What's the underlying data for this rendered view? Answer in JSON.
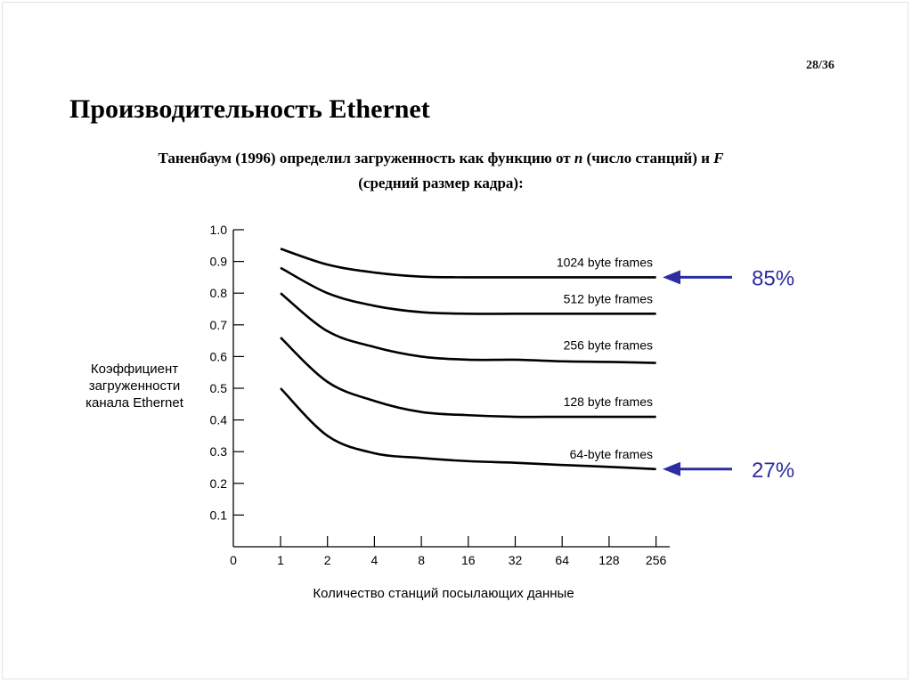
{
  "page_number": "28/36",
  "title": "Производительность Ethernet",
  "subtitle": {
    "part1": "Таненбаум (1996) определил загруженность как функцию от ",
    "var_n": "n",
    "part2": " (число станций) и ",
    "var_f": "F",
    "line2": "(средний размер кадра):"
  },
  "chart_data": {
    "type": "line",
    "title": "",
    "xlabel": "Количество станций посылающих данные",
    "ylabel": [
      "Коэффициент",
      "загруженности",
      "канала Ethernet"
    ],
    "x_ticks": [
      "0",
      "1",
      "2",
      "4",
      "8",
      "16",
      "32",
      "64",
      "128",
      "256"
    ],
    "y_ticks": [
      "0.1",
      "0.2",
      "0.3",
      "0.4",
      "0.5",
      "0.6",
      "0.7",
      "0.8",
      "0.9",
      "1.0"
    ],
    "ylim": [
      0,
      1.0
    ],
    "x": [
      1,
      2,
      4,
      8,
      16,
      32,
      64,
      128,
      256
    ],
    "series": [
      {
        "name": "1024 byte frames",
        "values": [
          0.94,
          0.89,
          0.865,
          0.852,
          0.85,
          0.85,
          0.85,
          0.85,
          0.85
        ]
      },
      {
        "name": "512 byte frames",
        "values": [
          0.88,
          0.8,
          0.76,
          0.74,
          0.735,
          0.735,
          0.735,
          0.735,
          0.735
        ]
      },
      {
        "name": "256 byte frames",
        "values": [
          0.8,
          0.68,
          0.63,
          0.6,
          0.59,
          0.59,
          0.585,
          0.583,
          0.58
        ]
      },
      {
        "name": "128 byte frames",
        "values": [
          0.66,
          0.52,
          0.46,
          0.425,
          0.415,
          0.41,
          0.41,
          0.41,
          0.41
        ]
      },
      {
        "name": "64-byte frames",
        "values": [
          0.5,
          0.35,
          0.295,
          0.28,
          0.27,
          0.265,
          0.258,
          0.252,
          0.245
        ]
      }
    ],
    "annotations": [
      {
        "text": "85%",
        "y": 0.85,
        "color": "#2b2ea0"
      },
      {
        "text": "27%",
        "y": 0.245,
        "color": "#2b2ea0"
      }
    ],
    "grid": false,
    "legend": "inline"
  }
}
